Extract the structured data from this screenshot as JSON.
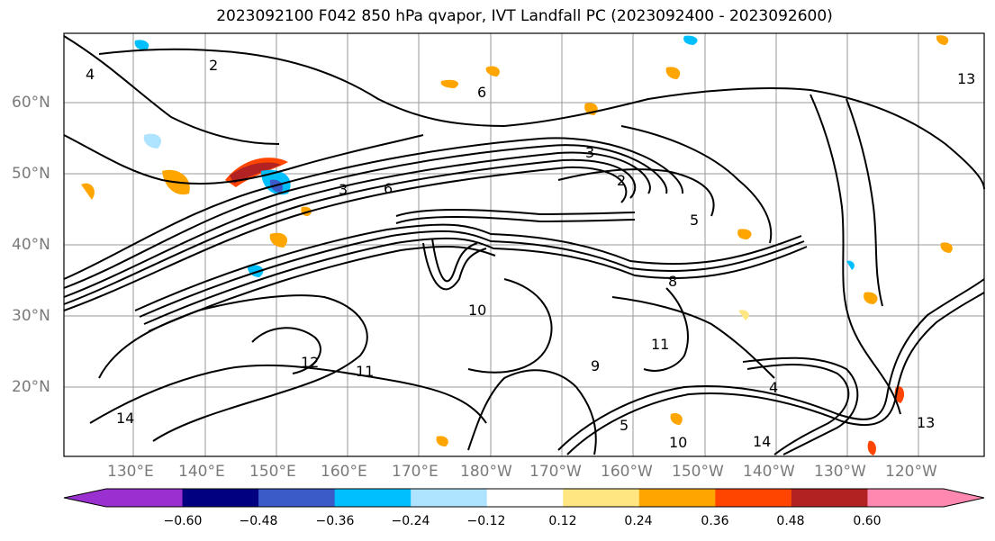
{
  "title": "2023092100 F042 850 hPa qvapor, IVT Landfall PC (2023092400 - 2023092600)",
  "lat_labels": [
    "60°N",
    "50°N",
    "40°N",
    "30°N",
    "20°N"
  ],
  "lon_labels": [
    "130°E",
    "140°E",
    "150°E",
    "160°E",
    "170°E",
    "180°W",
    "170°W",
    "160°W",
    "150°W",
    "140°W",
    "130°W",
    "120°W"
  ],
  "colorbar": {
    "ticks": [
      "−0.60",
      "−0.48",
      "−0.36",
      "−0.24",
      "−0.12",
      "0.12",
      "0.24",
      "0.36",
      "0.48",
      "0.60"
    ],
    "colors": [
      "#9b30d0",
      "#000080",
      "#3a5bc8",
      "#00bfff",
      "#aee4ff",
      "#ffffff",
      "#ffe680",
      "#ffa500",
      "#ff4500",
      "#b22222",
      "#ff88b0"
    ]
  },
  "contour_labels": [
    "2",
    "3",
    "4",
    "5",
    "6",
    "8",
    "10",
    "11",
    "12",
    "13",
    "14",
    "3",
    "2",
    "6",
    "4",
    "5",
    "11",
    "9",
    "10",
    "14",
    "13"
  ]
}
